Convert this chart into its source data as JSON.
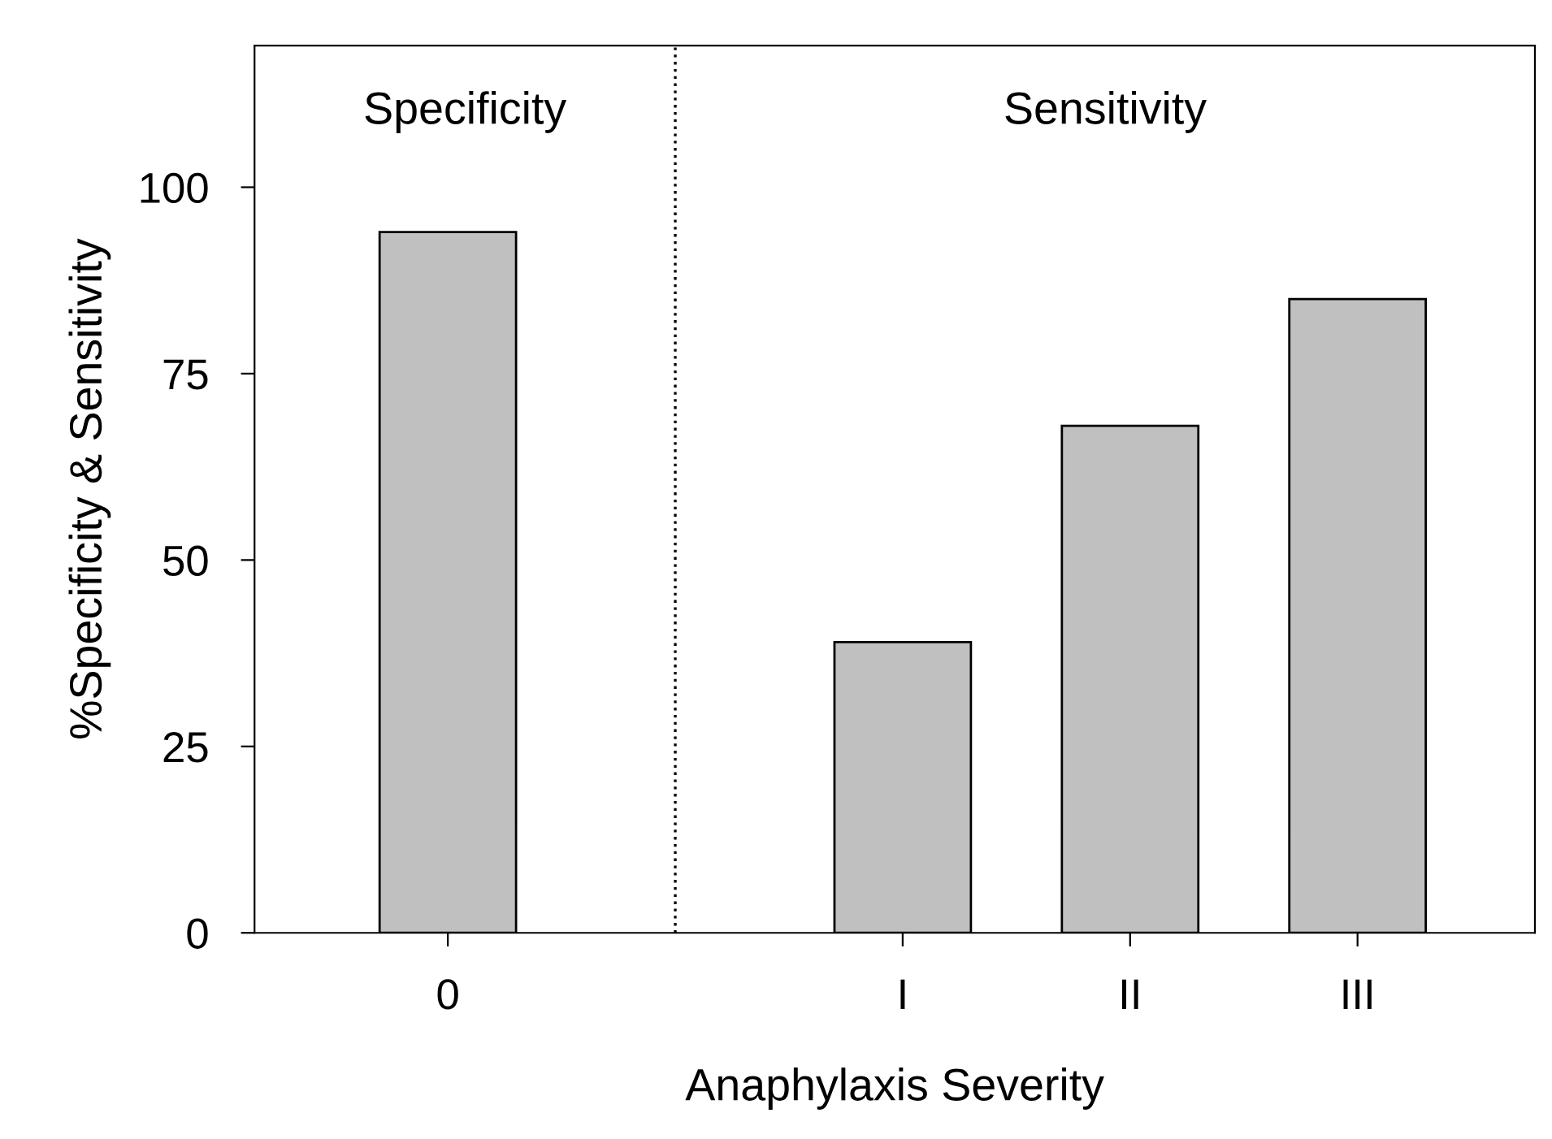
{
  "chart_data": {
    "type": "bar",
    "categories": [
      "0",
      null,
      "I",
      "II",
      "III"
    ],
    "values": [
      94,
      null,
      39,
      68,
      85
    ],
    "color": "#c0c0c0",
    "xlabel": "Anaphylaxis Severity",
    "ylabel": "%Specificity & Sensitivity",
    "ylim": [
      0,
      119
    ],
    "yticks": [
      0,
      25,
      50,
      75,
      100
    ],
    "ref_lines": [
      {
        "axis": "x",
        "line_style": "dotted",
        "color": "#000000"
      }
    ],
    "annotations": [
      {
        "text": "Specificity"
      },
      {
        "text": "Sensitivity"
      }
    ],
    "legend": false
  }
}
